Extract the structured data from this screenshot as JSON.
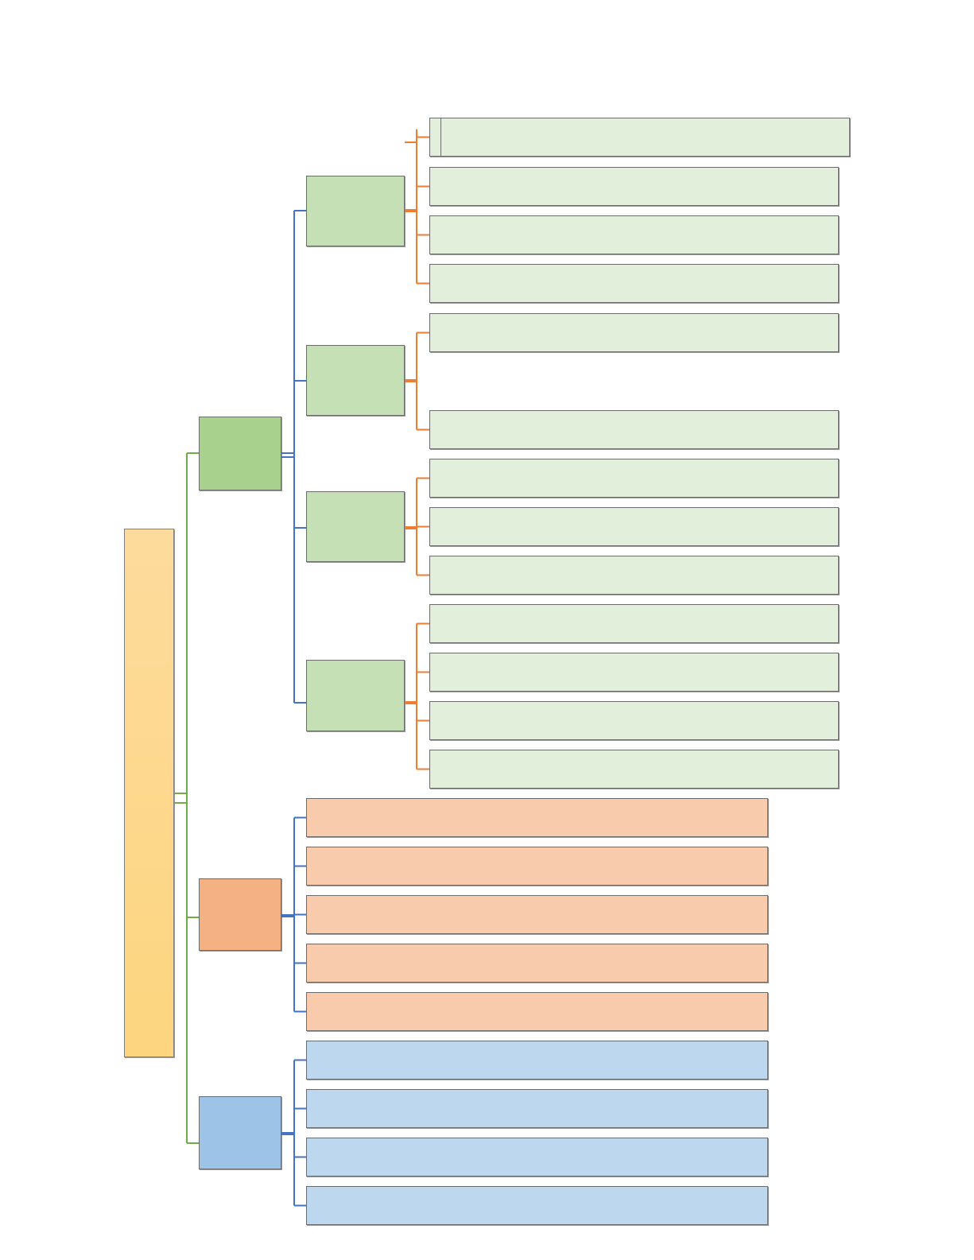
{
  "colors": {
    "root_fill_top": "#FDDB9C",
    "root_fill_bottom": "#FDD57F",
    "green_branch_fill": "#A9D18E",
    "green_sub_fill": "#C5E0B4",
    "green_leaf_fill": "#E2EFDA",
    "orange_branch_fill": "#F4B183",
    "orange_leaf_fill": "#F7CBAC",
    "blue_branch_fill": "#9DC3E6",
    "blue_leaf_fill": "#BDD7EE",
    "connector_green": "#70AD47",
    "connector_blue": "#4472C4",
    "connector_orange": "#ED7D31"
  },
  "diagram": {
    "root": {
      "label": ""
    },
    "branches": [
      {
        "label": "",
        "color": "green",
        "subgroups": [
          {
            "label": "",
            "leaves": [
              "",
              "",
              "",
              ""
            ]
          },
          {
            "label": "",
            "leaves": [
              "",
              ""
            ]
          },
          {
            "label": "",
            "leaves": [
              "",
              "",
              ""
            ]
          },
          {
            "label": "",
            "leaves": [
              "",
              "",
              "",
              ""
            ]
          }
        ]
      },
      {
        "label": "",
        "color": "orange",
        "leaves": [
          "",
          "",
          "",
          "",
          ""
        ]
      },
      {
        "label": "",
        "color": "blue",
        "leaves": [
          "",
          "",
          "",
          ""
        ]
      }
    ]
  }
}
